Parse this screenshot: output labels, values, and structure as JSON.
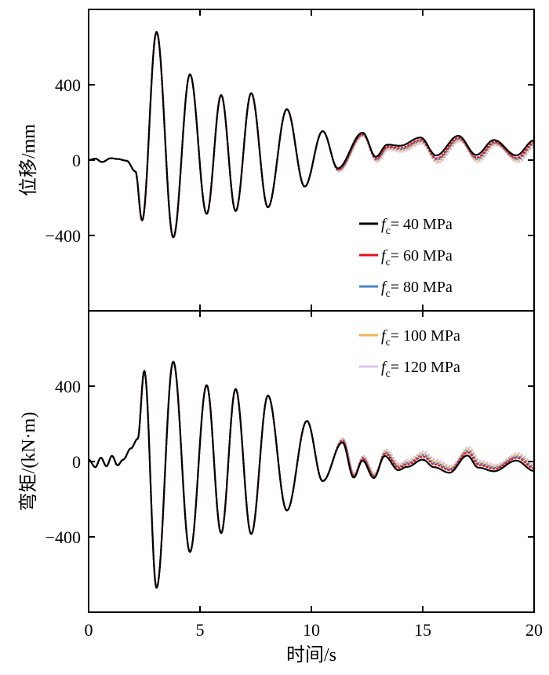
{
  "chart_data": [
    {
      "type": "line",
      "panel": "top",
      "title": "",
      "xlabel": "",
      "ylabel": "位移/mm",
      "xlim": [
        0,
        20
      ],
      "ylim": [
        -800,
        800
      ],
      "yticks": [
        -400,
        0,
        400
      ],
      "ytick_labels": [
        "−400",
        "0",
        "400"
      ],
      "waveform": {
        "base": [
          [
            0,
            0
          ],
          [
            0.3,
            8
          ],
          [
            0.6,
            -10
          ],
          [
            1.0,
            10
          ],
          [
            1.3,
            6
          ],
          [
            1.7,
            -3
          ],
          [
            2.1,
            -60
          ],
          [
            2.4,
            -320
          ],
          [
            3.05,
            680
          ],
          [
            3.8,
            -410
          ],
          [
            4.55,
            455
          ],
          [
            5.3,
            -285
          ],
          [
            5.95,
            345
          ],
          [
            6.6,
            -270
          ],
          [
            7.3,
            355
          ],
          [
            8.05,
            -250
          ],
          [
            8.9,
            270
          ],
          [
            9.7,
            -140
          ],
          [
            10.5,
            150
          ],
          [
            11.2,
            -60
          ],
          [
            12.3,
            120
          ],
          [
            12.9,
            -10
          ],
          [
            13.4,
            50
          ],
          [
            14.0,
            40
          ],
          [
            14.9,
            80
          ],
          [
            15.6,
            -15
          ],
          [
            16.6,
            90
          ],
          [
            17.4,
            -10
          ],
          [
            18.2,
            70
          ],
          [
            19.2,
            -10
          ],
          [
            20,
            70
          ]
        ],
        "spread": [
          [
            0,
            0
          ],
          [
            9,
            0
          ],
          [
            12,
            0.6
          ],
          [
            14,
            1.2
          ],
          [
            20,
            1.8
          ]
        ],
        "tail_bias": [
          [
            0,
            0
          ],
          [
            10,
            0
          ],
          [
            12,
            25
          ],
          [
            15,
            40
          ],
          [
            20,
            35
          ]
        ]
      },
      "series": [
        {
          "name": "f_c = 40 MPa",
          "color": "#000000",
          "k": 0.0,
          "style": "solid"
        },
        {
          "name": "f_c = 60 MPa",
          "color": "#e8101a",
          "k": 0.35,
          "style": "dotted"
        },
        {
          "name": "f_c = 80 MPa",
          "color": "#4a84c4",
          "k": 0.55,
          "style": "dotted"
        },
        {
          "name": "f_c = 100 MPa",
          "color": "#f2b455",
          "k": 0.75,
          "style": "dotted"
        },
        {
          "name": "f_c = 120 MPa",
          "color": "#dcc4ec",
          "k": 1.0,
          "style": "dotted"
        }
      ]
    },
    {
      "type": "line",
      "panel": "bottom",
      "title": "",
      "xlabel": "时间/s",
      "ylabel": "弯矩/(kN·m)",
      "xlim": [
        0,
        20
      ],
      "ylim": [
        -800,
        800
      ],
      "xticks": [
        0,
        5,
        10,
        15,
        20
      ],
      "xtick_labels": [
        "0",
        "5",
        "10",
        "15",
        "20"
      ],
      "yticks": [
        -400,
        0,
        400
      ],
      "ytick_labels": [
        "−400",
        "0",
        "400"
      ],
      "waveform": {
        "base": [
          [
            0,
            10
          ],
          [
            0.3,
            -30
          ],
          [
            0.55,
            20
          ],
          [
            0.8,
            -25
          ],
          [
            1.05,
            30
          ],
          [
            1.3,
            -20
          ],
          [
            1.55,
            10
          ],
          [
            1.9,
            70
          ],
          [
            2.2,
            120
          ],
          [
            2.5,
            480
          ],
          [
            3.05,
            -670
          ],
          [
            3.8,
            530
          ],
          [
            4.55,
            -480
          ],
          [
            5.3,
            405
          ],
          [
            5.95,
            -380
          ],
          [
            6.6,
            385
          ],
          [
            7.3,
            -385
          ],
          [
            8.05,
            350
          ],
          [
            8.9,
            -260
          ],
          [
            9.8,
            215
          ],
          [
            10.5,
            -100
          ],
          [
            11.4,
            120
          ],
          [
            11.9,
            -60
          ],
          [
            12.3,
            30
          ],
          [
            12.8,
            -60
          ],
          [
            13.3,
            60
          ],
          [
            13.9,
            -10
          ],
          [
            14.3,
            10
          ],
          [
            15.0,
            50
          ],
          [
            15.5,
            10
          ],
          [
            16.2,
            -20
          ],
          [
            17.0,
            70
          ],
          [
            17.5,
            5
          ],
          [
            18.2,
            -15
          ],
          [
            19.2,
            40
          ],
          [
            20,
            -15
          ]
        ],
        "spread": [
          [
            0,
            0
          ],
          [
            9,
            0
          ],
          [
            12,
            0.6
          ],
          [
            14,
            1.2
          ],
          [
            20,
            1.8
          ]
        ],
        "tail_bias": [
          [
            0,
            0
          ],
          [
            10,
            0
          ],
          [
            12,
            -25
          ],
          [
            15,
            -40
          ],
          [
            20,
            -35
          ]
        ]
      },
      "series": [
        {
          "name": "f_c = 40 MPa",
          "color": "#000000",
          "k": 0.0,
          "style": "solid"
        },
        {
          "name": "f_c = 60 MPa",
          "color": "#e8101a",
          "k": 0.35,
          "style": "dotted"
        },
        {
          "name": "f_c = 80 MPa",
          "color": "#4a84c4",
          "k": 0.55,
          "style": "dotted"
        },
        {
          "name": "f_c = 100 MPa",
          "color": "#f2b455",
          "k": 0.75,
          "style": "dotted"
        },
        {
          "name": "f_c = 120 MPa",
          "color": "#dcc4ec",
          "k": 1.0,
          "style": "dotted"
        }
      ]
    }
  ],
  "legend": {
    "placement": "right, across both panels",
    "items": [
      {
        "symbol": "f",
        "sub": "c",
        "text": "= 40 MPa",
        "color": "#000000"
      },
      {
        "symbol": "f",
        "sub": "c",
        "text": "= 60 MPa",
        "color": "#e8101a"
      },
      {
        "symbol": "f",
        "sub": "c",
        "text": "= 80 MPa",
        "color": "#4a84c4"
      },
      {
        "symbol": "f",
        "sub": "c",
        "text": "= 100 MPa",
        "color": "#f2b455"
      },
      {
        "symbol": "f",
        "sub": "c",
        "text": "= 120 MPa",
        "color": "#dcc4ec"
      }
    ]
  }
}
